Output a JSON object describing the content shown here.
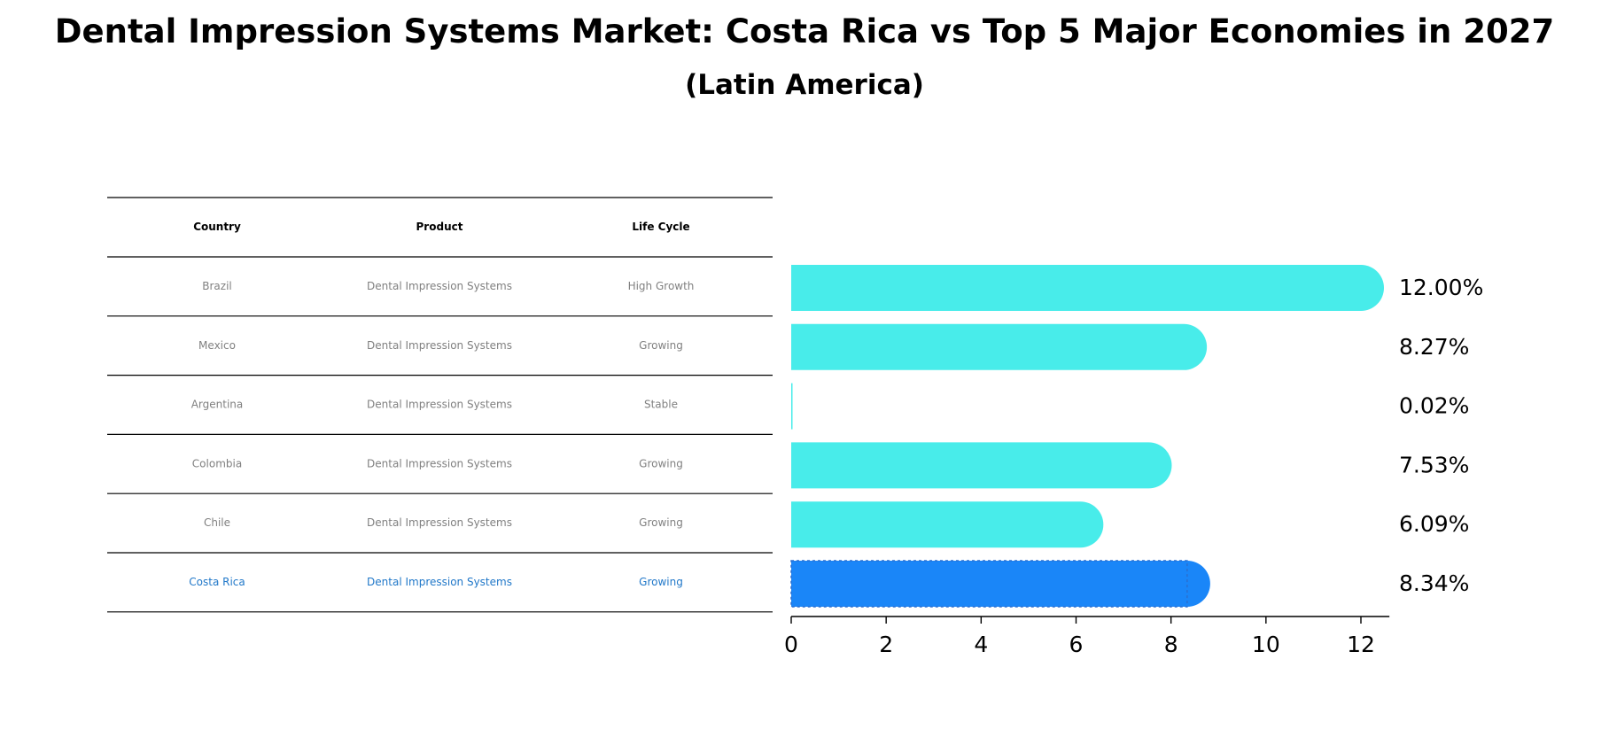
{
  "title": "Dental Impression Systems Market: Costa Rica vs Top 5 Major Economies in 2027",
  "subtitle": "(Latin America)",
  "table": {
    "headers": [
      "Country",
      "Product",
      "Life Cycle"
    ],
    "rows": [
      [
        "Brazil",
        "Dental Impression Systems",
        "High Growth"
      ],
      [
        "Mexico",
        "Dental Impression Systems",
        "Growing"
      ],
      [
        "Argentina",
        "Dental Impression Systems",
        "Stable"
      ],
      [
        "Colombia",
        "Dental Impression Systems",
        "Growing"
      ],
      [
        "Chile",
        "Dental Impression Systems",
        "Growing"
      ],
      [
        "Costa Rica",
        "Dental Impression Systems",
        "Growing"
      ]
    ],
    "highlight_row": 5
  },
  "colors": {
    "bar": "#48ECEA",
    "highlight": "#1A86F8",
    "row_text": "#808080",
    "highlight_text": "#2178C9"
  },
  "chart_data": {
    "type": "bar",
    "orientation": "horizontal",
    "categories": [
      "Brazil",
      "Mexico",
      "Argentina",
      "Colombia",
      "Chile",
      "Costa Rica"
    ],
    "values": [
      12.0,
      8.27,
      0.02,
      7.53,
      6.09,
      8.34
    ],
    "value_labels": [
      "12.00%",
      "8.27%",
      "0.02%",
      "7.53%",
      "6.09%",
      "8.34%"
    ],
    "xticks": [
      "0",
      "2",
      "4",
      "6",
      "8",
      "10",
      "12"
    ],
    "xlim": [
      0,
      12.6
    ],
    "highlight_category": "Costa Rica",
    "grid": false
  }
}
